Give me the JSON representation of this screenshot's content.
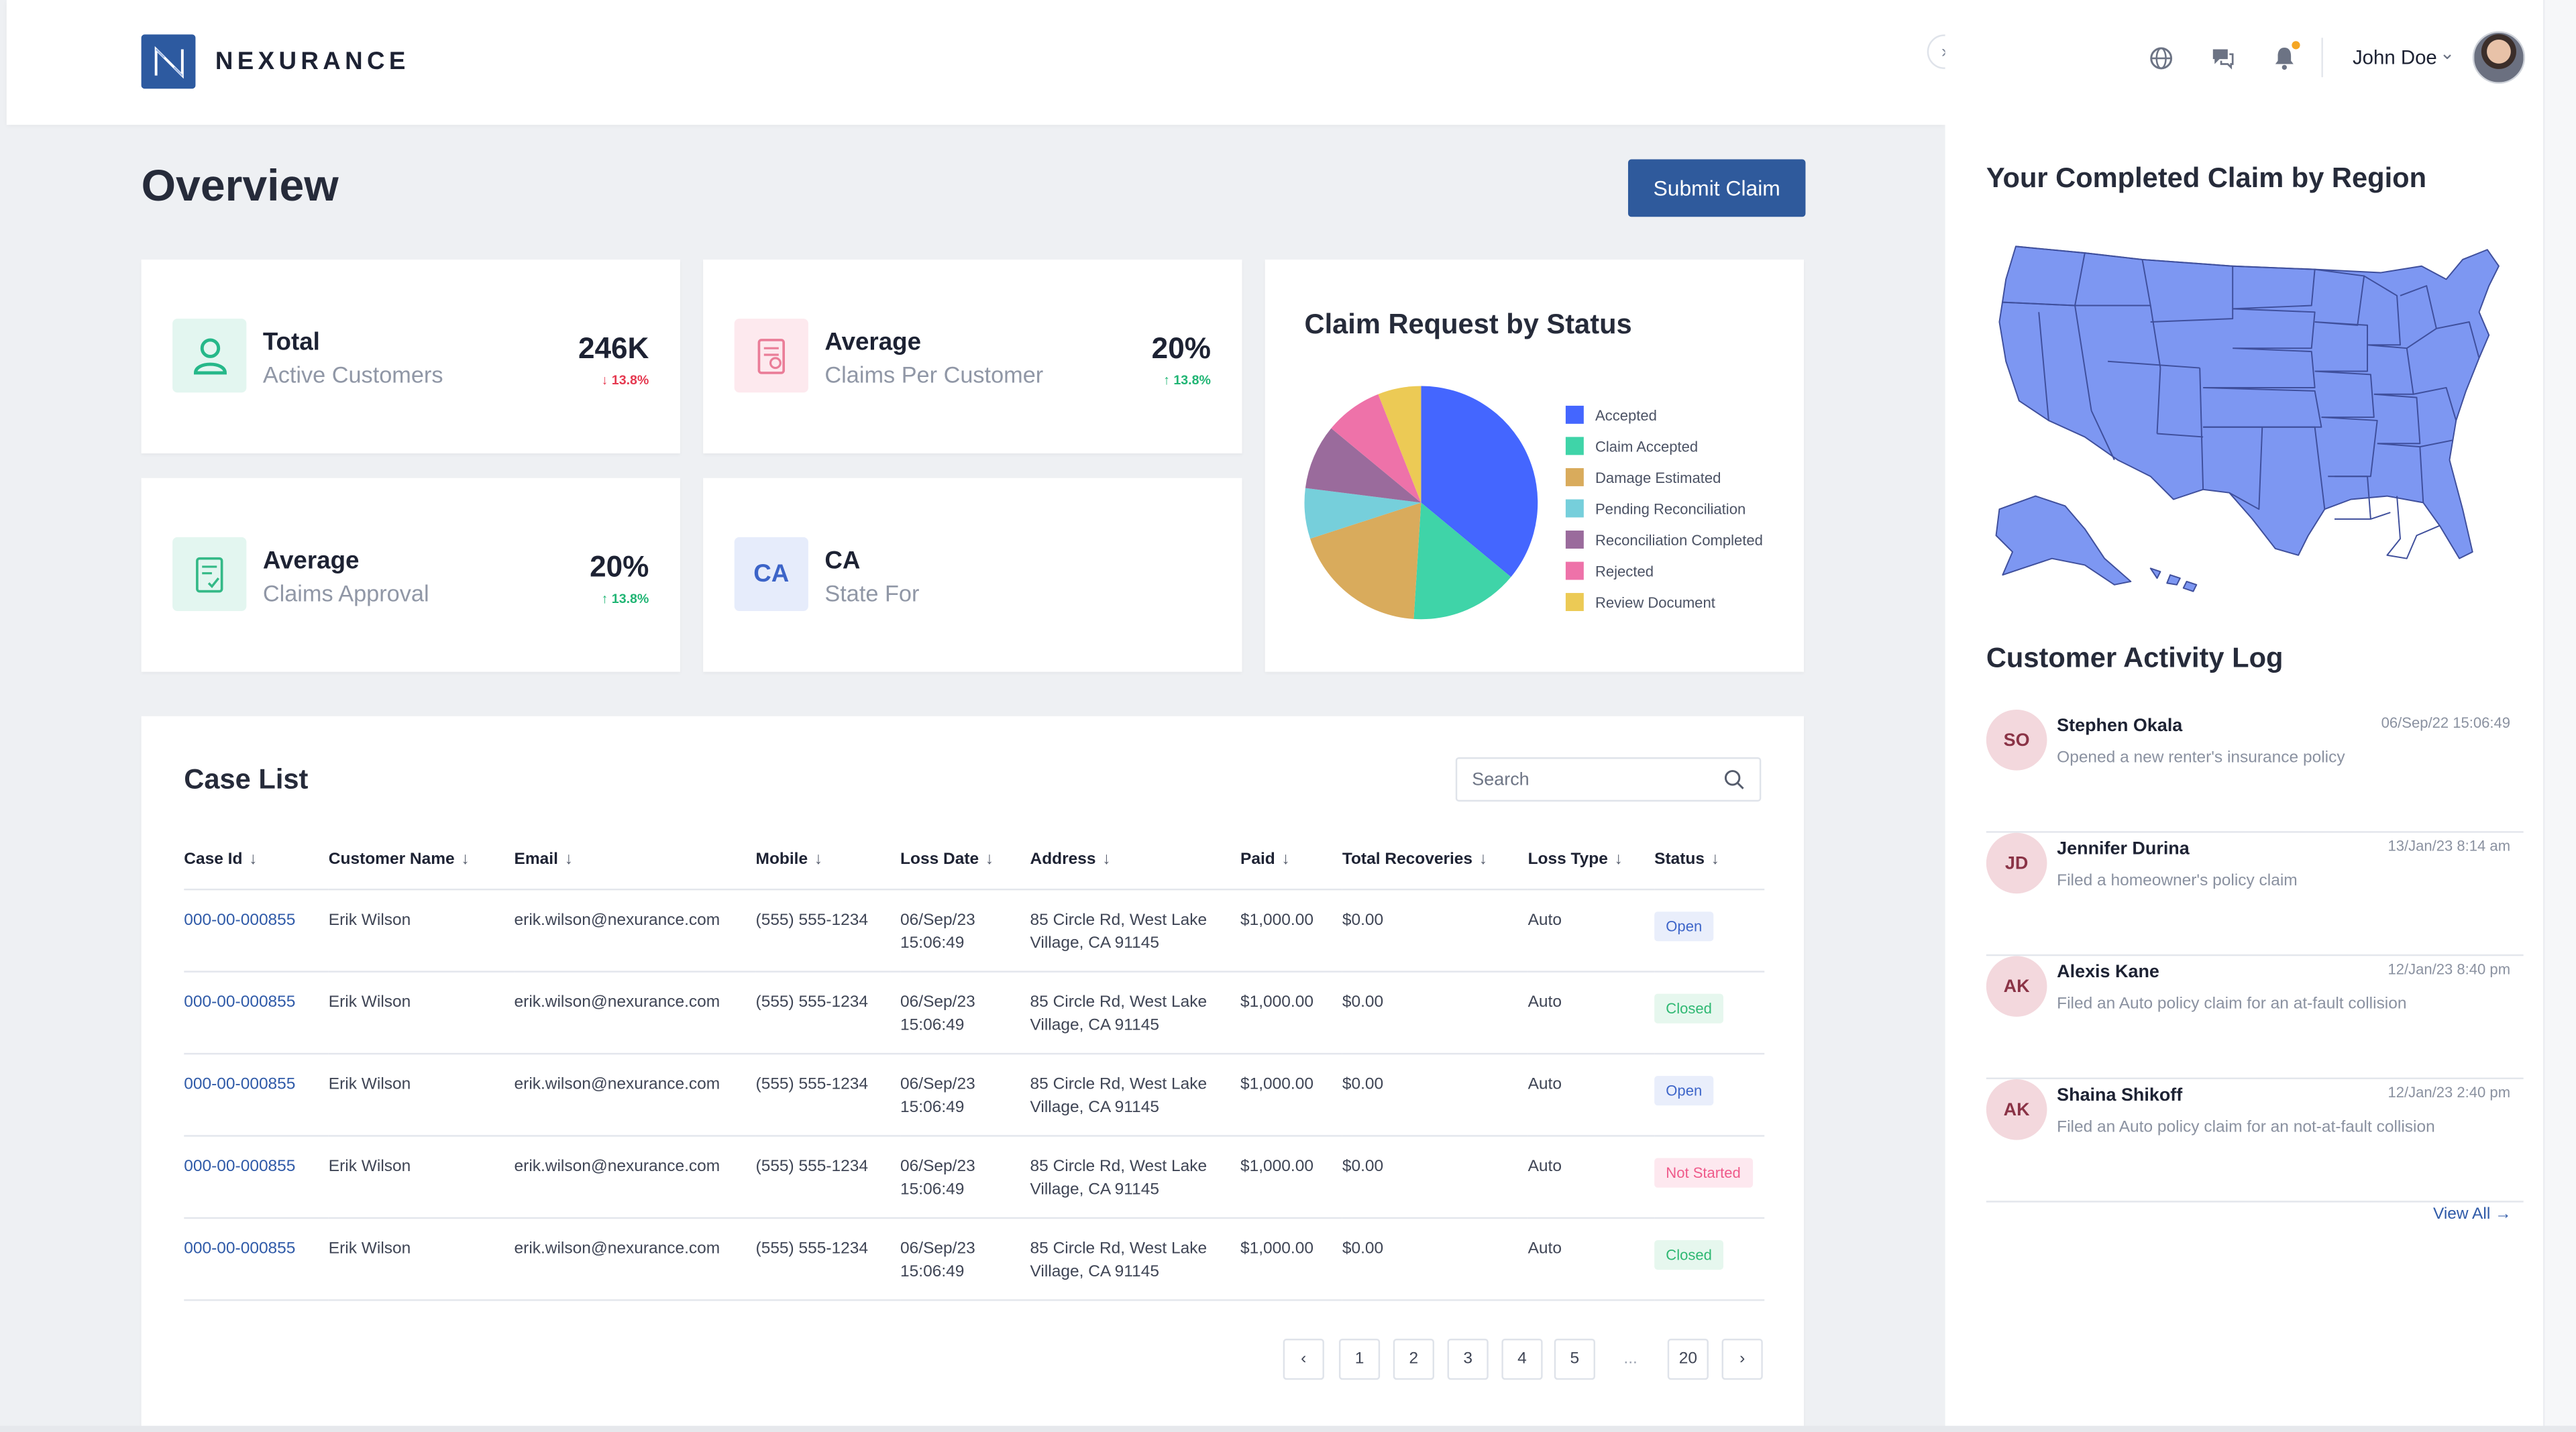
{
  "brand": {
    "name": "NEXURANCE"
  },
  "header": {
    "user_name": "John Doe",
    "icons": [
      "globe-icon",
      "chat-icon",
      "bell-icon"
    ]
  },
  "page": {
    "title": "Overview",
    "submit_label": "Submit Claim"
  },
  "stats": [
    {
      "title": "Total",
      "subtitle": "Active Customers",
      "value": "246K",
      "delta": "13.8%",
      "direction": "down",
      "icon": "user-icon",
      "icon_bg": "#e3f6f0",
      "icon_color": "#26b889"
    },
    {
      "title": "Average",
      "subtitle": "Claims Per Customer",
      "value": "20%",
      "delta": "13.8%",
      "direction": "up",
      "icon": "document-icon",
      "icon_bg": "#fde9ee",
      "icon_color": "#ea7d98"
    },
    {
      "title": "Average",
      "subtitle": "Claims Approval",
      "value": "20%",
      "delta": "13.8%",
      "direction": "up",
      "icon": "approval-doc-icon",
      "icon_bg": "#e3f6f0",
      "icon_color": "#34b987"
    },
    {
      "title": "CA",
      "subtitle": "State For",
      "badge": "CA",
      "icon_bg": "#e6ecfb",
      "icon_color": "#3c64c8"
    }
  ],
  "chart_data": {
    "type": "pie",
    "title": "Claim Request by Status",
    "slices": [
      {
        "label": "Accepted",
        "value": 36,
        "color": "#4466ff"
      },
      {
        "label": "Claim Accepted",
        "value": 15,
        "color": "#3fd4a8"
      },
      {
        "label": "Damage Estimated",
        "value": 19,
        "color": "#d9ab5c"
      },
      {
        "label": "Pending Reconciliation",
        "value": 7,
        "color": "#76cfdb"
      },
      {
        "label": "Reconciliation Completed",
        "value": 9,
        "color": "#9a6b9c"
      },
      {
        "label": "Rejected",
        "value": 8,
        "color": "#ee72a9"
      },
      {
        "label": "Review Document",
        "value": 6,
        "color": "#ecca55"
      }
    ]
  },
  "case_list": {
    "title": "Case List",
    "search_placeholder": "Search",
    "columns": [
      "Case Id",
      "Customer Name",
      "Email",
      "Mobile",
      "Loss Date",
      "Address",
      "Paid",
      "Total Recoveries",
      "Loss Type",
      "Status"
    ],
    "rows": [
      {
        "case_id": "000-00-000855",
        "name": "Erik Wilson",
        "email": "erik.wilson@nexurance.com",
        "mobile": "(555) 555-1234",
        "loss_date": "06/Sep/23",
        "loss_time": "15:06:49",
        "address1": "85 Circle Rd, West Lake",
        "address2": "Village, CA 91145",
        "paid": "$1,000.00",
        "recoveries": "$0.00",
        "loss_type": "Auto",
        "status": "Open",
        "status_kind": "open"
      },
      {
        "case_id": "000-00-000855",
        "name": "Erik Wilson",
        "email": "erik.wilson@nexurance.com",
        "mobile": "(555) 555-1234",
        "loss_date": "06/Sep/23",
        "loss_time": "15:06:49",
        "address1": "85 Circle Rd, West Lake",
        "address2": "Village, CA 91145",
        "paid": "$1,000.00",
        "recoveries": "$0.00",
        "loss_type": "Auto",
        "status": "Closed",
        "status_kind": "closed"
      },
      {
        "case_id": "000-00-000855",
        "name": "Erik Wilson",
        "email": "erik.wilson@nexurance.com",
        "mobile": "(555) 555-1234",
        "loss_date": "06/Sep/23",
        "loss_time": "15:06:49",
        "address1": "85 Circle Rd, West Lake",
        "address2": "Village, CA 91145",
        "paid": "$1,000.00",
        "recoveries": "$0.00",
        "loss_type": "Auto",
        "status": "Open",
        "status_kind": "open"
      },
      {
        "case_id": "000-00-000855",
        "name": "Erik Wilson",
        "email": "erik.wilson@nexurance.com",
        "mobile": "(555) 555-1234",
        "loss_date": "06/Sep/23",
        "loss_time": "15:06:49",
        "address1": "85 Circle Rd, West Lake",
        "address2": "Village, CA 91145",
        "paid": "$1,000.00",
        "recoveries": "$0.00",
        "loss_type": "Auto",
        "status": "Not Started",
        "status_kind": "notstarted"
      },
      {
        "case_id": "000-00-000855",
        "name": "Erik Wilson",
        "email": "erik.wilson@nexurance.com",
        "mobile": "(555) 555-1234",
        "loss_date": "06/Sep/23",
        "loss_time": "15:06:49",
        "address1": "85 Circle Rd, West Lake",
        "address2": "Village, CA 91145",
        "paid": "$1,000.00",
        "recoveries": "$0.00",
        "loss_type": "Auto",
        "status": "Closed",
        "status_kind": "closed"
      }
    ],
    "pagination": {
      "pages": [
        "1",
        "2",
        "3",
        "4",
        "5"
      ],
      "ellipsis": "...",
      "last": "20"
    }
  },
  "right_panel": {
    "region_title": "Your Completed Claim by Region",
    "map_color": "#7d97f2",
    "activity_title": "Customer Activity Log",
    "activities": [
      {
        "initials": "SO",
        "name": "Stephen Okala",
        "desc": "Opened a new renter's insurance policy",
        "time": "06/Sep/22 15:06:49"
      },
      {
        "initials": "JD",
        "name": "Jennifer Durina",
        "desc": "Filed a homeowner's policy claim",
        "time": "13/Jan/23 8:14 am"
      },
      {
        "initials": "AK",
        "name": "Alexis Kane",
        "desc": "Filed an Auto policy claim for an at-fault collision",
        "time": "12/Jan/23 8:40 pm"
      },
      {
        "initials": "AK",
        "name": "Shaina Shikoff",
        "desc": "Filed an Auto policy claim for an not-at-fault collision",
        "time": "12/Jan/23 2:40 pm"
      }
    ],
    "view_all": "View All"
  }
}
